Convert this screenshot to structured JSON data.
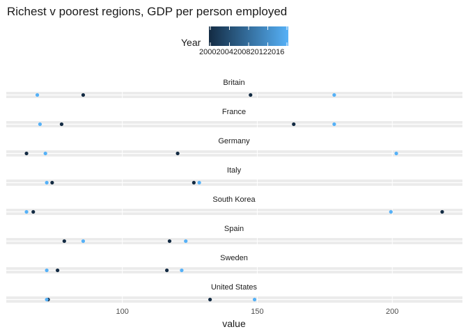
{
  "chart_data": {
    "type": "scatter",
    "title": "Richest v poorest regions, GDP per person employed",
    "xlabel": "value",
    "ylabel": "",
    "xlim": [
      57,
      226
    ],
    "x_ticks": [
      100,
      150,
      200
    ],
    "grid": true,
    "legend": {
      "title": "Year",
      "type": "colorbar",
      "placement": "top",
      "range": [
        2000,
        2016
      ],
      "ticks": [
        "2000",
        "2004",
        "2008",
        "2012",
        "2016"
      ],
      "color_low": "#132B43",
      "color_high": "#56B1F7"
    },
    "facets": [
      {
        "label": "Britain",
        "points": [
          {
            "value": 85.5,
            "year": 2000
          },
          {
            "value": 147.5,
            "year": 2000
          },
          {
            "value": 68.5,
            "year": 2016
          },
          {
            "value": 178.5,
            "year": 2016
          }
        ]
      },
      {
        "label": "France",
        "points": [
          {
            "value": 77.5,
            "year": 2000
          },
          {
            "value": 163.5,
            "year": 2000
          },
          {
            "value": 69.5,
            "year": 2016
          },
          {
            "value": 178.5,
            "year": 2016
          }
        ]
      },
      {
        "label": "Germany",
        "points": [
          {
            "value": 64.5,
            "year": 2000
          },
          {
            "value": 120.5,
            "year": 2000
          },
          {
            "value": 71.5,
            "year": 2016
          },
          {
            "value": 201.5,
            "year": 2016
          }
        ]
      },
      {
        "label": "Italy",
        "points": [
          {
            "value": 74,
            "year": 2000
          },
          {
            "value": 126.5,
            "year": 2000
          },
          {
            "value": 72,
            "year": 2016
          },
          {
            "value": 128.5,
            "year": 2016
          }
        ]
      },
      {
        "label": "South Korea",
        "points": [
          {
            "value": 67,
            "year": 2000
          },
          {
            "value": 218.5,
            "year": 2000
          },
          {
            "value": 64.5,
            "year": 2016
          },
          {
            "value": 199.5,
            "year": 2016
          }
        ]
      },
      {
        "label": "Spain",
        "points": [
          {
            "value": 78.5,
            "year": 2000
          },
          {
            "value": 117.5,
            "year": 2000
          },
          {
            "value": 85.5,
            "year": 2016
          },
          {
            "value": 123.5,
            "year": 2016
          }
        ]
      },
      {
        "label": "Sweden",
        "points": [
          {
            "value": 76,
            "year": 2000
          },
          {
            "value": 116.5,
            "year": 2000
          },
          {
            "value": 72,
            "year": 2016
          },
          {
            "value": 122,
            "year": 2016
          }
        ]
      },
      {
        "label": "United States",
        "points": [
          {
            "value": 72.5,
            "year": 2000
          },
          {
            "value": 132.5,
            "year": 2000
          },
          {
            "value": 72,
            "year": 2016
          },
          {
            "value": 149,
            "year": 2016
          }
        ]
      }
    ]
  }
}
